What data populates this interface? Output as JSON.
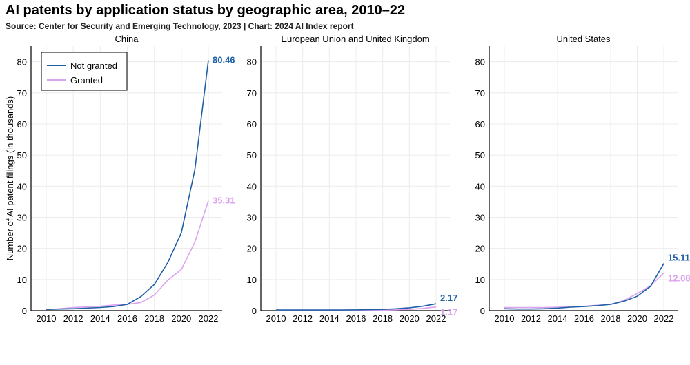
{
  "page": {
    "title": "AI patents by application status by geographic area, 2010–22",
    "subtitle": "Source: Center for Security and Emerging Technology, 2023 | Chart: 2024 AI Index report"
  },
  "chart_data": {
    "type": "line",
    "ylabel": "Number of AI patent filings (in thousands)",
    "ylim": [
      0,
      85
    ],
    "yticks": [
      0,
      10,
      20,
      30,
      40,
      50,
      60,
      70,
      80
    ],
    "xticks": [
      2010,
      2012,
      2014,
      2016,
      2018,
      2020,
      2022
    ],
    "grid": true,
    "legend": {
      "position": "top-left",
      "entries": [
        "Not granted",
        "Granted"
      ]
    },
    "colors": {
      "Not granted": "#1f5fa6",
      "Granted": "#d9a3ee"
    },
    "x": [
      2010,
      2011,
      2012,
      2013,
      2014,
      2015,
      2016,
      2017,
      2018,
      2019,
      2020,
      2021,
      2022
    ],
    "panels": [
      {
        "title": "China",
        "series": [
          {
            "name": "Not granted",
            "values": [
              0.4,
              0.5,
              0.6,
              0.8,
              1.0,
              1.3,
              2.0,
              4.5,
              8.4,
              15.5,
              25.0,
              45.3,
              80.46
            ],
            "end_label": "80.46"
          },
          {
            "name": "Granted",
            "values": [
              0.3,
              0.6,
              1.0,
              1.2,
              1.4,
              1.8,
              2.0,
              2.6,
              5.0,
              9.8,
              13.2,
              22.0,
              35.31
            ],
            "end_label": "35.31"
          }
        ]
      },
      {
        "title": "European Union and United Kingdom",
        "series": [
          {
            "name": "Not granted",
            "values": [
              0.2,
              0.2,
              0.2,
              0.2,
              0.2,
              0.2,
              0.25,
              0.3,
              0.4,
              0.6,
              0.9,
              1.4,
              2.17
            ],
            "end_label": "2.17"
          },
          {
            "name": "Granted",
            "values": [
              0.1,
              0.1,
              0.1,
              0.1,
              0.1,
              0.1,
              0.1,
              0.1,
              0.15,
              0.25,
              0.4,
              0.7,
              1.17
            ],
            "end_label": "1.17"
          }
        ]
      },
      {
        "title": "United States",
        "series": [
          {
            "name": "Not granted",
            "values": [
              0.6,
              0.5,
              0.5,
              0.6,
              0.8,
              1.1,
              1.3,
              1.6,
              2.0,
              3.0,
              4.6,
              7.8,
              15.11
            ],
            "end_label": "15.11"
          },
          {
            "name": "Granted",
            "values": [
              1.0,
              1.0,
              1.0,
              1.0,
              1.1,
              1.2,
              1.4,
              1.7,
              2.0,
              3.3,
              5.5,
              8.0,
              12.08
            ],
            "end_label": "12.08"
          }
        ]
      }
    ]
  }
}
